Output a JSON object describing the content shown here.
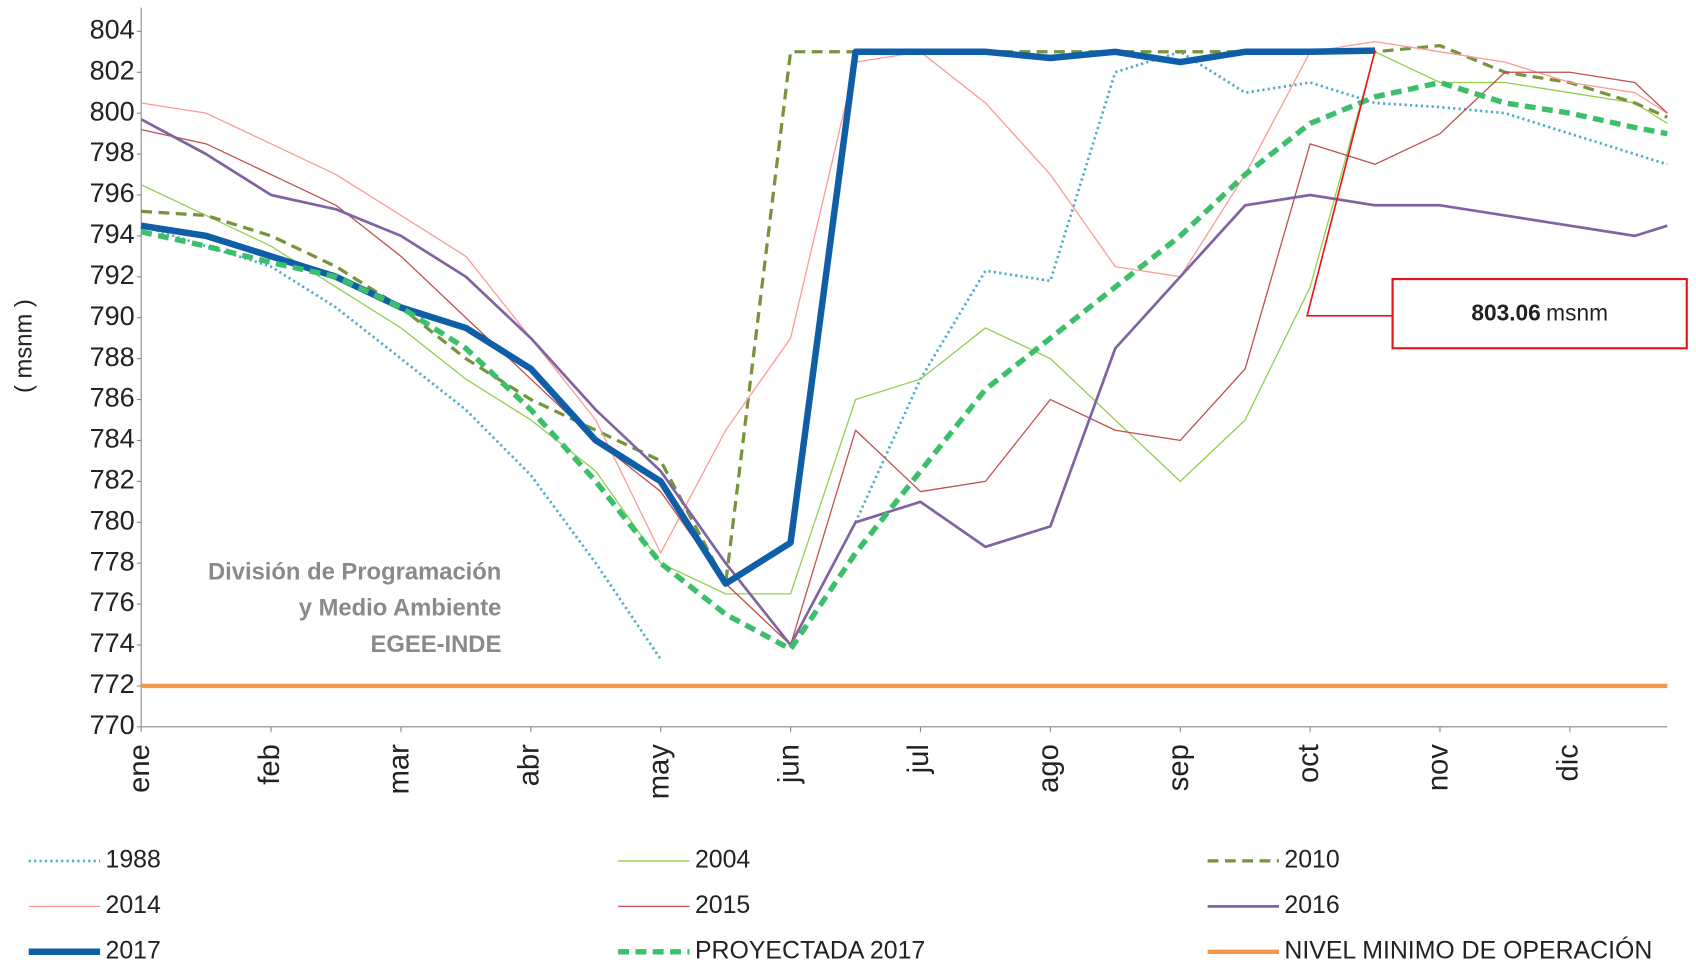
{
  "chart_data": {
    "type": "line",
    "y_label": "( msnm )",
    "x": [
      0,
      0.5,
      1,
      1.5,
      2,
      2.5,
      3,
      3.5,
      4,
      4.5,
      5,
      5.5,
      6,
      6.5,
      7,
      7.5,
      8,
      8.5,
      9,
      9.5,
      10,
      10.5,
      11,
      11.5,
      11.75
    ],
    "xlim": [
      0,
      11.75
    ],
    "xticks": [
      {
        "value": 0,
        "label": "ene"
      },
      {
        "value": 1,
        "label": "feb"
      },
      {
        "value": 2,
        "label": "mar"
      },
      {
        "value": 3,
        "label": "abr"
      },
      {
        "value": 4,
        "label": "may"
      },
      {
        "value": 5,
        "label": "jun"
      },
      {
        "value": 6,
        "label": "jul"
      },
      {
        "value": 7,
        "label": "ago"
      },
      {
        "value": 8,
        "label": "sep"
      },
      {
        "value": 9,
        "label": "oct"
      },
      {
        "value": 10,
        "label": "nov"
      },
      {
        "value": 11,
        "label": "dic"
      }
    ],
    "ylim": [
      770,
      804
    ],
    "yticks": [
      770,
      772,
      774,
      776,
      778,
      780,
      782,
      784,
      786,
      788,
      790,
      792,
      794,
      796,
      798,
      800,
      802,
      804
    ],
    "grid": false,
    "legend": "bottom",
    "series": [
      {
        "name": "1988",
        "color": "#4bacc6",
        "width": 2.5,
        "dash": "dotted",
        "values": [
          794.5,
          793.5,
          792.5,
          790.5,
          788,
          785.5,
          782.3,
          778,
          773.3,
          null,
          null,
          780,
          787,
          792.3,
          791.8,
          802,
          803,
          801,
          801.5,
          800.5,
          800.3,
          800,
          799,
          798,
          797.5
        ]
      },
      {
        "name": "2004",
        "color": "#92d050",
        "width": 1.2,
        "dash": "solid",
        "values": [
          796.5,
          795,
          793.5,
          791.5,
          789.5,
          787,
          785,
          782.5,
          778,
          776.5,
          776.5,
          786,
          787,
          789.5,
          788,
          785,
          782,
          785,
          791.5,
          803,
          801.5,
          801.5,
          801,
          800.5,
          799.5
        ]
      },
      {
        "name": "2010",
        "color": "#77933c",
        "width": 3,
        "dash": "dashed",
        "values": [
          795.2,
          795,
          794,
          792.5,
          790.5,
          788,
          786,
          784.5,
          783,
          777,
          803,
          803,
          803,
          803,
          803,
          803,
          803,
          803,
          803,
          803,
          803.3,
          802,
          801.5,
          800.5,
          799.8
        ]
      },
      {
        "name": "2014",
        "color": "#ff9999",
        "width": 1.2,
        "dash": "solid",
        "values": [
          800.5,
          800,
          798.5,
          797,
          795,
          793,
          789,
          785,
          778.5,
          784.5,
          789,
          802.5,
          803,
          800.5,
          797,
          792.5,
          792,
          797,
          803,
          803.5,
          803,
          802.5,
          801.5,
          801,
          800
        ]
      },
      {
        "name": "2015",
        "color": "#c0504d",
        "width": 1.2,
        "dash": "solid",
        "values": [
          799.2,
          798.5,
          797,
          795.5,
          793,
          790,
          787,
          784,
          781.5,
          777,
          774,
          784.5,
          781.5,
          782,
          786,
          784.5,
          784,
          787.5,
          798.5,
          797.5,
          799,
          802,
          802,
          801.5,
          800
        ]
      },
      {
        "name": "2016",
        "color": "#8064a2",
        "width": 2.5,
        "dash": "solid",
        "values": [
          799.7,
          798,
          796,
          795.3,
          794,
          792,
          789,
          785.5,
          782.5,
          778,
          774,
          780,
          781,
          778.8,
          779.8,
          788.5,
          792,
          795.5,
          796,
          795.5,
          795.5,
          795,
          794.5,
          794,
          794.5
        ]
      },
      {
        "name": "2017",
        "color": "#0f5fa8",
        "width": 6,
        "dash": "solid",
        "values": [
          794.5,
          794,
          793,
          792,
          790.5,
          789.5,
          787.5,
          784,
          782,
          777,
          779,
          803,
          803,
          803,
          802.7,
          803,
          802.5,
          803,
          803,
          803.06,
          null,
          null,
          null,
          null,
          null
        ]
      },
      {
        "name": "PROYECTADA 2017",
        "color": "#3cbf6b",
        "width": 5,
        "dash": "dashed",
        "values": [
          794.2,
          793.5,
          792.7,
          792,
          790.5,
          788.5,
          785.5,
          782,
          778,
          775.5,
          773.8,
          778.5,
          782.5,
          786.5,
          789,
          791.5,
          794,
          797,
          799.5,
          800.8,
          801.5,
          800.5,
          800,
          799.3,
          799
        ]
      },
      {
        "name": "NIVEL MINIMO DE OPERACIÓN",
        "color": "#f79646",
        "width": 4,
        "dash": "solid",
        "values": [
          772,
          772,
          772,
          772,
          772,
          772,
          772,
          772,
          772,
          772,
          772,
          772,
          772,
          772,
          772,
          772,
          772,
          772,
          772,
          772,
          772,
          772,
          772,
          772,
          772
        ]
      }
    ],
    "annotation": {
      "value": 803.06,
      "unit": "msnm",
      "color": "#e8141b"
    },
    "watermark": [
      "División de Programación",
      "y Medio Ambiente",
      "EGEE-INDE"
    ]
  }
}
